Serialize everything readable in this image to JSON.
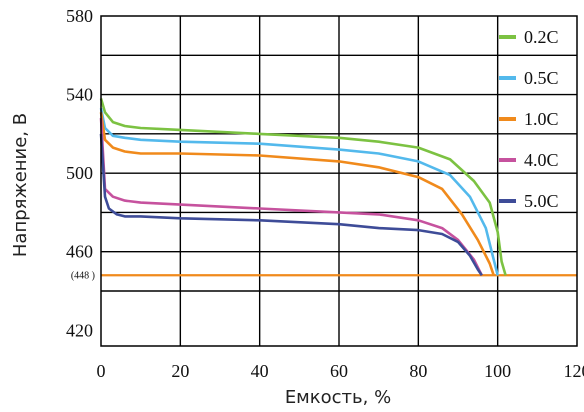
{
  "chart_data": {
    "type": "line",
    "title": "",
    "xlabel": "Емкость, %",
    "ylabel": "Напряжение, В",
    "xlim": [
      0,
      120
    ],
    "ylim": [
      412,
      580
    ],
    "x_ticks": [
      "0",
      "20",
      "40",
      "60",
      "80",
      "100",
      "120"
    ],
    "y_ticks": [
      {
        "value": 580,
        "label": "580"
      },
      {
        "value": 540,
        "label": "540"
      },
      {
        "value": 500,
        "label": "500"
      },
      {
        "value": 460,
        "label": "460"
      },
      {
        "value": 420,
        "label": "420"
      }
    ],
    "grid": true,
    "legend_position": "right",
    "reference_line": {
      "value": 448,
      "label": "(448 )",
      "color": "#f08a1c"
    },
    "series": [
      {
        "name": "0.2C",
        "color": "#7cc242",
        "points": [
          [
            0,
            538
          ],
          [
            1,
            531
          ],
          [
            3,
            526
          ],
          [
            6,
            524
          ],
          [
            10,
            523
          ],
          [
            20,
            522
          ],
          [
            40,
            520
          ],
          [
            60,
            518
          ],
          [
            70,
            516
          ],
          [
            80,
            513
          ],
          [
            88,
            507
          ],
          [
            94,
            496
          ],
          [
            98,
            485
          ],
          [
            100,
            470
          ],
          [
            101,
            455
          ],
          [
            102,
            448
          ]
        ]
      },
      {
        "name": "0.5C",
        "color": "#53b9ec",
        "points": [
          [
            0,
            533
          ],
          [
            1,
            523
          ],
          [
            3,
            519
          ],
          [
            6,
            518
          ],
          [
            10,
            517
          ],
          [
            20,
            516
          ],
          [
            40,
            515
          ],
          [
            60,
            512
          ],
          [
            70,
            510
          ],
          [
            80,
            506
          ],
          [
            88,
            499
          ],
          [
            93,
            488
          ],
          [
            97,
            472
          ],
          [
            99,
            456
          ],
          [
            100,
            448
          ]
        ]
      },
      {
        "name": "1.0C",
        "color": "#f08a1c",
        "points": [
          [
            0,
            531
          ],
          [
            1,
            517
          ],
          [
            3,
            513
          ],
          [
            6,
            511
          ],
          [
            10,
            510
          ],
          [
            20,
            510
          ],
          [
            40,
            509
          ],
          [
            60,
            506
          ],
          [
            70,
            503
          ],
          [
            80,
            498
          ],
          [
            86,
            492
          ],
          [
            91,
            479
          ],
          [
            95,
            466
          ],
          [
            98,
            454
          ],
          [
            99,
            448
          ]
        ]
      },
      {
        "name": "4.0C",
        "color": "#c6529e",
        "points": [
          [
            0,
            528
          ],
          [
            1,
            492
          ],
          [
            3,
            488
          ],
          [
            6,
            486
          ],
          [
            10,
            485
          ],
          [
            20,
            484
          ],
          [
            40,
            482
          ],
          [
            60,
            480
          ],
          [
            70,
            479
          ],
          [
            80,
            476
          ],
          [
            86,
            472
          ],
          [
            90,
            466
          ],
          [
            94,
            456
          ],
          [
            96,
            448
          ]
        ]
      },
      {
        "name": "5.0C",
        "color": "#3e4c98",
        "points": [
          [
            0,
            520
          ],
          [
            1,
            488
          ],
          [
            2,
            482
          ],
          [
            4,
            479
          ],
          [
            6,
            478
          ],
          [
            10,
            478
          ],
          [
            20,
            477
          ],
          [
            40,
            476
          ],
          [
            60,
            474
          ],
          [
            70,
            472
          ],
          [
            80,
            471
          ],
          [
            86,
            469
          ],
          [
            90,
            465
          ],
          [
            93,
            458
          ],
          [
            95,
            451
          ],
          [
            96,
            448
          ]
        ]
      }
    ]
  }
}
